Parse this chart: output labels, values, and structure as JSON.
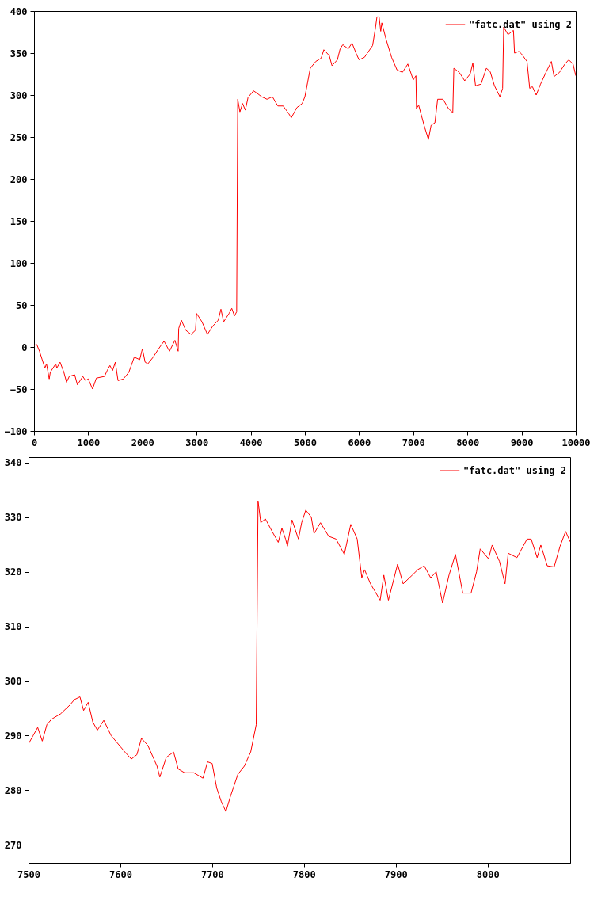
{
  "chart_data": [
    {
      "type": "line",
      "xlim": [
        0,
        10000
      ],
      "ylim": [
        -100,
        400
      ],
      "xticks": [
        0,
        1000,
        2000,
        3000,
        4000,
        5000,
        6000,
        7000,
        8000,
        9000,
        10000
      ],
      "yticks": [
        -100,
        -50,
        0,
        50,
        100,
        150,
        200,
        250,
        300,
        350,
        400
      ],
      "grid": false,
      "legend": "top right",
      "series": [
        {
          "name": "\"fatc.dat\" using 2",
          "color": "#ff0000",
          "x": [
            0,
            50,
            100,
            150,
            200,
            230,
            280,
            300,
            400,
            420,
            480,
            550,
            600,
            650,
            750,
            800,
            900,
            950,
            1000,
            1080,
            1150,
            1300,
            1350,
            1400,
            1450,
            1500,
            1550,
            1650,
            1750,
            1850,
            1950,
            2000,
            2050,
            2100,
            2200,
            2300,
            2400,
            2500,
            2600,
            2660,
            2670,
            2720,
            2800,
            2900,
            2980,
            3000,
            3100,
            3200,
            3300,
            3400,
            3450,
            3500,
            3600,
            3650,
            3700,
            3740,
            3760,
            3800,
            3850,
            3900,
            3950,
            4050,
            4100,
            4200,
            4300,
            4400,
            4500,
            4600,
            4700,
            4750,
            4850,
            4950,
            5000,
            5050,
            5100,
            5200,
            5300,
            5350,
            5450,
            5500,
            5600,
            5650,
            5700,
            5800,
            5870,
            5950,
            6000,
            6100,
            6250,
            6300,
            6330,
            6370,
            6400,
            6420,
            6500,
            6600,
            6700,
            6800,
            6900,
            7000,
            7050,
            7060,
            7100,
            7200,
            7280,
            7330,
            7400,
            7450,
            7550,
            7650,
            7730,
            7750,
            7850,
            7950,
            8050,
            8100,
            8150,
            8250,
            8350,
            8420,
            8500,
            8600,
            8650,
            8670,
            8750,
            8850,
            8870,
            8950,
            9000,
            9100,
            9150,
            9200,
            9270,
            9350,
            9450,
            9550,
            9600,
            9700,
            9800,
            9870,
            9950,
            10000
          ],
          "values": [
            2,
            3,
            -5,
            -15,
            -25,
            -20,
            -38,
            -30,
            -20,
            -25,
            -18,
            -30,
            -42,
            -35,
            -33,
            -45,
            -35,
            -40,
            -38,
            -50,
            -37,
            -35,
            -28,
            -22,
            -28,
            -18,
            -40,
            -38,
            -30,
            -12,
            -15,
            -2,
            -18,
            -20,
            -12,
            -2,
            7,
            -5,
            8,
            -5,
            22,
            32,
            20,
            15,
            20,
            40,
            30,
            15,
            25,
            32,
            45,
            30,
            40,
            46,
            37,
            42,
            295,
            280,
            290,
            282,
            297,
            305,
            303,
            298,
            295,
            298,
            287,
            287,
            278,
            273,
            285,
            290,
            298,
            315,
            332,
            340,
            344,
            354,
            347,
            335,
            342,
            355,
            360,
            355,
            362,
            349,
            342,
            345,
            359,
            379,
            393,
            393,
            376,
            386,
            366,
            345,
            330,
            327,
            337,
            318,
            323,
            284,
            288,
            264,
            247,
            264,
            267,
            295,
            295,
            284,
            279,
            332,
            327,
            317,
            325,
            338,
            311,
            313,
            332,
            328,
            311,
            298,
            308,
            381,
            372,
            377,
            350,
            352,
            349,
            340,
            308,
            310,
            300,
            313,
            327,
            340,
            322,
            327,
            337,
            342,
            337,
            323
          ]
        }
      ]
    },
    {
      "type": "line",
      "xlim": [
        7500,
        8090
      ],
      "ylim": [
        266.7,
        341
      ],
      "xticks": [
        7500,
        7600,
        7700,
        7800,
        7900,
        8000
      ],
      "yticks": [
        270,
        280,
        290,
        300,
        310,
        320,
        330,
        340
      ],
      "grid": false,
      "legend": "top right",
      "series": [
        {
          "name": "\"fatc.dat\" using 2",
          "color": "#ff0000",
          "x": [
            7500,
            7505,
            7510,
            7515,
            7520,
            7525,
            7535,
            7545,
            7550,
            7556,
            7560,
            7565,
            7570,
            7575,
            7582,
            7590,
            7600,
            7605,
            7612,
            7618,
            7623,
            7630,
            7640,
            7643,
            7650,
            7658,
            7663,
            7670,
            7680,
            7690,
            7695,
            7700,
            7705,
            7710,
            7715,
            7720,
            7728,
            7735,
            7742,
            7748,
            7749,
            7750,
            7753,
            7758,
            7765,
            7772,
            7776,
            7780,
            7782,
            7787,
            7794,
            7797.5,
            7802,
            7808,
            7811,
            7818,
            7827,
            7835,
            7844,
            7851,
            7858,
            7863,
            7866,
            7872.5,
            7883,
            7887,
            7892,
            7902,
            7908,
            7918,
            7924,
            7931,
            7938,
            7944,
            7951,
            7958,
            7965,
            7973,
            7982,
            7988,
            7992,
            8001,
            8005,
            8013,
            8019,
            8022.5,
            8032,
            8043,
            8047.5,
            8054,
            8058,
            8065,
            8072.5,
            8079,
            8085,
            8090
          ],
          "values": [
            288.5,
            290,
            291.5,
            289,
            292,
            293,
            294,
            295.6,
            296.6,
            297.1,
            294.6,
            296.1,
            292.5,
            291,
            292.8,
            290,
            288,
            287,
            285.7,
            286.5,
            289.5,
            288.2,
            284.4,
            282.4,
            286,
            287,
            283.9,
            283.2,
            283.2,
            282.2,
            285.2,
            284.9,
            280.4,
            277.9,
            276.1,
            278.9,
            282.9,
            284.4,
            287,
            292,
            312.3,
            333,
            329,
            329.7,
            327.5,
            325.4,
            328,
            326,
            324.7,
            329.5,
            326,
            329,
            331.3,
            330,
            327,
            329,
            326.5,
            326,
            323.2,
            328.7,
            326,
            318.9,
            320.4,
            317.8,
            314.8,
            319.4,
            314.8,
            321.4,
            317.8,
            319.4,
            320.4,
            321.1,
            318.9,
            320,
            314.3,
            319.4,
            323.2,
            316.1,
            316.1,
            320,
            324.2,
            322.4,
            324.9,
            321.9,
            317.8,
            323.4,
            322.6,
            326,
            326,
            322.6,
            324.9,
            321.1,
            320.9,
            324.7,
            327.4,
            325.5
          ]
        }
      ]
    }
  ]
}
